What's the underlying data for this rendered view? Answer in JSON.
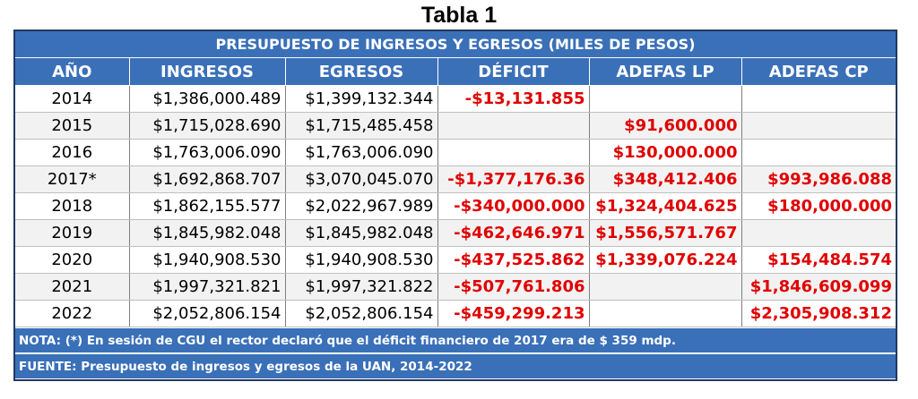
{
  "title": "Tabla 1",
  "table": {
    "caption": "PRESUPUESTO DE INGRESOS Y EGRESOS (MILES DE PESOS)",
    "headers": [
      "AÑO",
      "INGRESOS",
      "EGRESOS",
      "DÉFICIT",
      "ADEFAS LP",
      "ADEFAS CP"
    ],
    "rows": [
      {
        "year": "2014",
        "ingresos": "$1,386,000.489",
        "egresos": "$1,399,132.344",
        "deficit": "-$13,131.855",
        "adefas_lp": "",
        "adefas_cp": ""
      },
      {
        "year": "2015",
        "ingresos": "$1,715,028.690",
        "egresos": "$1,715,485.458",
        "deficit": "",
        "adefas_lp": "$91,600.000",
        "adefas_cp": ""
      },
      {
        "year": "2016",
        "ingresos": "$1,763,006.090",
        "egresos": "$1,763,006.090",
        "deficit": "",
        "adefas_lp": "$130,000.000",
        "adefas_cp": ""
      },
      {
        "year": "2017*",
        "ingresos": "$1,692,868.707",
        "egresos": "$3,070,045.070",
        "deficit": "-$1,377,176.36",
        "adefas_lp": "$348,412.406",
        "adefas_cp": "$993,986.088"
      },
      {
        "year": "2018",
        "ingresos": "$1,862,155.577",
        "egresos": "$2,022,967.989",
        "deficit": "-$340,000.000",
        "adefas_lp": "$1,324,404.625",
        "adefas_cp": "$180,000.000"
      },
      {
        "year": "2019",
        "ingresos": "$1,845,982.048",
        "egresos": "$1,845,982.048",
        "deficit": "-$462,646.971",
        "adefas_lp": "$1,556,571.767",
        "adefas_cp": ""
      },
      {
        "year": "2020",
        "ingresos": "$1,940,908.530",
        "egresos": "$1,940,908.530",
        "deficit": "-$437,525.862",
        "adefas_lp": "$1,339,076.224",
        "adefas_cp": "$154,484.574"
      },
      {
        "year": "2021",
        "ingresos": "$1,997,321.821",
        "egresos": "$1,997,321.822",
        "deficit": "-$507,761.806",
        "adefas_lp": "",
        "adefas_cp": "$1,846,609.099"
      },
      {
        "year": "2022",
        "ingresos": "$2,052,806.154",
        "egresos": "$2,052,806.154",
        "deficit": "-$459,299.213",
        "adefas_lp": "",
        "adefas_cp": "$2,305,908.312"
      }
    ]
  },
  "note": "NOTA: (*) En sesión de CGU el rector declaró que el déficit financiero de 2017 era de $ 359 mdp.",
  "source": "FUENTE: Presupuesto de ingresos y egresos de la UAN, 2014-2022",
  "colors": {
    "header_blue": "#3a70b8",
    "negative_red": "#e00000",
    "border_navy": "#1f3864"
  }
}
